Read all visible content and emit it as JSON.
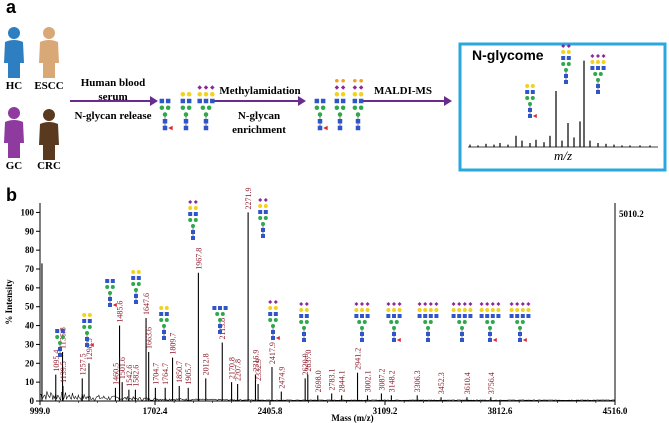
{
  "panel_a": {
    "letter": "a",
    "groups": [
      {
        "label": "HC",
        "color": "#2e7fc2"
      },
      {
        "label": "ESCC",
        "color": "#d9a877"
      },
      {
        "label": "GC",
        "color": "#8e3a9e"
      },
      {
        "label": "CRC",
        "color": "#5a3a1e"
      }
    ],
    "step1_top": "Human blood serum",
    "step1_bottom": "N-glycan release",
    "step2_top": "Methylamidation",
    "step2_bottom": "N-glycan enrichment",
    "step3_top": "MALDI-MS",
    "result_title": "N-glycome",
    "result_axis": "m/z",
    "colors": {
      "arrow": "#6a2c8c",
      "box_border": "#29a8e0"
    }
  },
  "panel_b": {
    "letter": "b",
    "max_intensity_label": "5010.2"
  },
  "chart_data": {
    "type": "line",
    "title": "",
    "xlabel": "Mass (m/z)",
    "ylabel": "% Intensity",
    "xlim": [
      999.0,
      4516.0
    ],
    "ylim": [
      0,
      105
    ],
    "x_ticks": [
      "999.0",
      "1702.4",
      "2405.8",
      "3109.2",
      "3812.6",
      "4516.0"
    ],
    "x_tick_values": [
      999.0,
      1702.4,
      2405.8,
      3109.2,
      3812.6,
      4516.0
    ],
    "y_ticks": [
      0,
      10,
      20,
      30,
      40,
      50,
      60,
      70,
      80,
      90,
      100
    ],
    "peaks": [
      {
        "mz": 1011.0,
        "intensity": 73,
        "label": ""
      },
      {
        "mz": 1095.4,
        "intensity": 14,
        "label": "1095.4"
      },
      {
        "mz": 1136.8,
        "intensity": 26,
        "label": "1136.8"
      },
      {
        "mz": 1139.5,
        "intensity": 8,
        "label": "1139.5"
      },
      {
        "mz": 1257.5,
        "intensity": 12,
        "label": "1257.5"
      },
      {
        "mz": 1298.5,
        "intensity": 20,
        "label": "1298.5"
      },
      {
        "mz": 1460.5,
        "intensity": 7,
        "label": "1460.5"
      },
      {
        "mz": 1485.6,
        "intensity": 40,
        "label": "1485.6"
      },
      {
        "mz": 1501.6,
        "intensity": 10,
        "label": "1501.6"
      },
      {
        "mz": 1542.6,
        "intensity": 6,
        "label": "1542.6"
      },
      {
        "mz": 1582.6,
        "intensity": 6,
        "label": "1582.6"
      },
      {
        "mz": 1647.6,
        "intensity": 44,
        "label": "1647.6"
      },
      {
        "mz": 1663.6,
        "intensity": 26,
        "label": "1663.6"
      },
      {
        "mz": 1704.7,
        "intensity": 7,
        "label": "1704.7"
      },
      {
        "mz": 1764.7,
        "intensity": 7,
        "label": "1764.7"
      },
      {
        "mz": 1809.7,
        "intensity": 23,
        "label": "1809.7"
      },
      {
        "mz": 1850.7,
        "intensity": 8,
        "label": "1850.7"
      },
      {
        "mz": 1905.7,
        "intensity": 7,
        "label": "1905.7"
      },
      {
        "mz": 1967.8,
        "intensity": 68,
        "label": "1967.8"
      },
      {
        "mz": 2012.8,
        "intensity": 12,
        "label": "2012.8"
      },
      {
        "mz": 2113.8,
        "intensity": 31,
        "label": "2113.8"
      },
      {
        "mz": 2170.8,
        "intensity": 10,
        "label": "2170.8"
      },
      {
        "mz": 2207.8,
        "intensity": 9,
        "label": "2207.8"
      },
      {
        "mz": 2271.9,
        "intensity": 100,
        "label": "2271.9"
      },
      {
        "mz": 2316.9,
        "intensity": 14,
        "label": "2316.9"
      },
      {
        "mz": 2332.9,
        "intensity": 9,
        "label": "2332.9"
      },
      {
        "mz": 2417.9,
        "intensity": 18,
        "label": "2417.9"
      },
      {
        "mz": 2474.9,
        "intensity": 5,
        "label": "2474.9"
      },
      {
        "mz": 2620.9,
        "intensity": 12,
        "label": "2620.9"
      },
      {
        "mz": 2637.0,
        "intensity": 14,
        "label": "2637.0"
      },
      {
        "mz": 2698.0,
        "intensity": 3,
        "label": "2698.0"
      },
      {
        "mz": 2783.1,
        "intensity": 4,
        "label": "2783.1"
      },
      {
        "mz": 2844.1,
        "intensity": 3,
        "label": "2844.1"
      },
      {
        "mz": 2941.2,
        "intensity": 15,
        "label": "2941.2"
      },
      {
        "mz": 3002.1,
        "intensity": 3,
        "label": "3002.1"
      },
      {
        "mz": 3087.2,
        "intensity": 4,
        "label": "3087.2"
      },
      {
        "mz": 3148.2,
        "intensity": 3,
        "label": "3148.2"
      },
      {
        "mz": 3306.3,
        "intensity": 3,
        "label": "3306.3"
      },
      {
        "mz": 3452.3,
        "intensity": 2,
        "label": "3452.3"
      },
      {
        "mz": 3610.4,
        "intensity": 2,
        "label": "3610.4"
      },
      {
        "mz": 3756.4,
        "intensity": 2,
        "label": "3756.4"
      }
    ]
  }
}
